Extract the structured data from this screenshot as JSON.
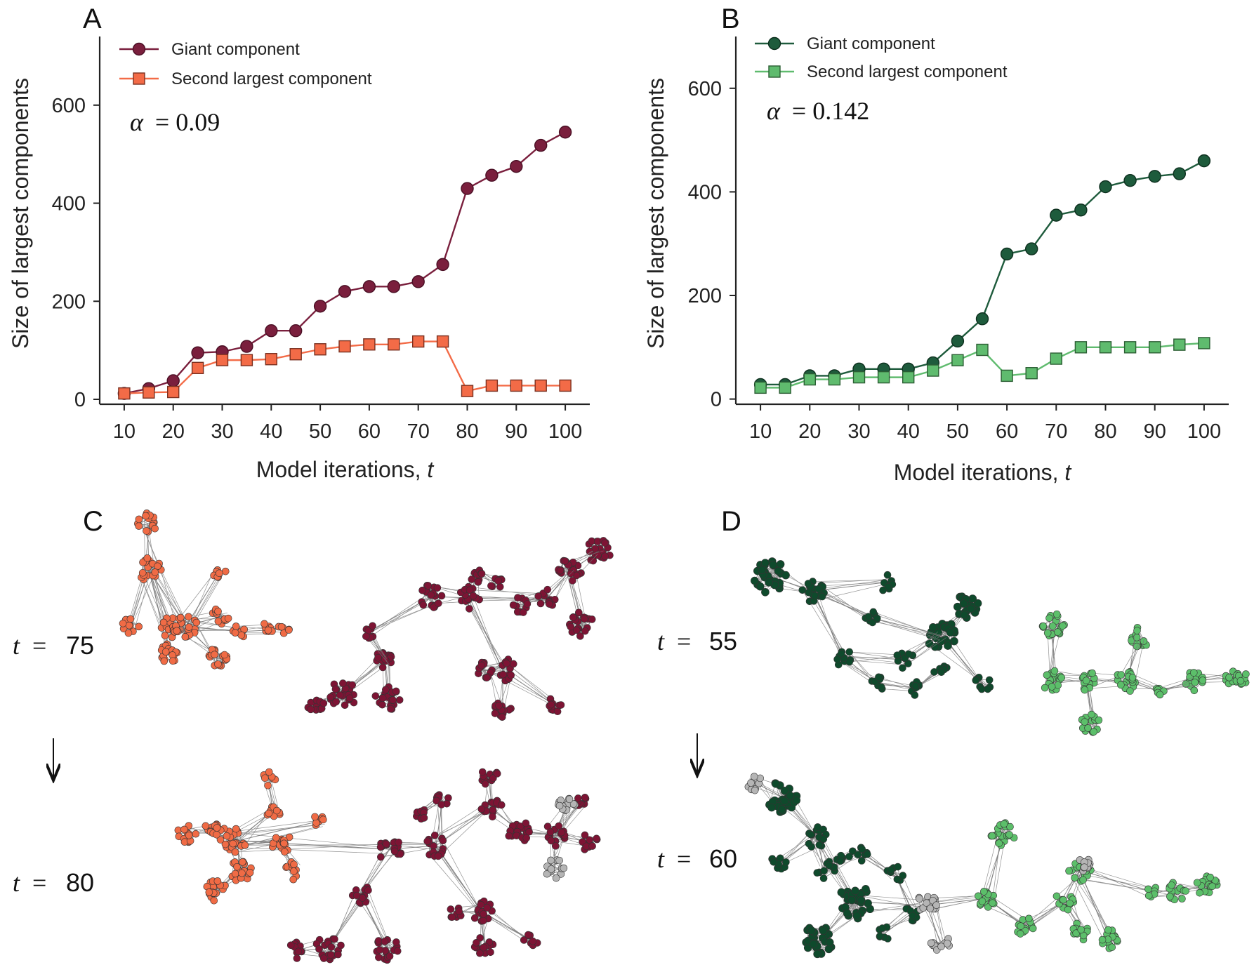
{
  "panels": {
    "A": "A",
    "B": "B",
    "C": "C",
    "D": "D"
  },
  "chart_data": [
    {
      "type": "line",
      "panel": "A",
      "xlabel_prefix": "Model iterations, ",
      "xlabel_var": "t",
      "ylabel": "Size of largest components",
      "annotation_lhs": "α",
      "annotation_rhs": "= 0.09",
      "x": [
        10,
        15,
        20,
        25,
        30,
        35,
        40,
        45,
        50,
        55,
        60,
        65,
        70,
        75,
        80,
        85,
        90,
        95,
        100
      ],
      "xticks": [
        10,
        20,
        30,
        40,
        50,
        60,
        70,
        80,
        90,
        100
      ],
      "yticks": [
        0,
        200,
        400,
        600
      ],
      "xlim": [
        5,
        105
      ],
      "ylim": [
        -10,
        740
      ],
      "legend_position": "top-left",
      "series": [
        {
          "name": "Giant component",
          "marker": "circle",
          "color": "#7a1f3d",
          "edge": "#4a0f24",
          "values": [
            12,
            22,
            38,
            95,
            97,
            108,
            140,
            140,
            190,
            220,
            230,
            230,
            240,
            275,
            430,
            457,
            475,
            518,
            545
          ]
        },
        {
          "name": "Second largest component",
          "marker": "square",
          "color": "#f36b47",
          "edge": "#7a3020",
          "values": [
            12,
            14,
            15,
            64,
            80,
            80,
            82,
            92,
            102,
            108,
            112,
            112,
            118,
            118,
            17,
            28,
            28,
            28,
            28
          ]
        }
      ]
    },
    {
      "type": "line",
      "panel": "B",
      "xlabel_prefix": "Model iterations, ",
      "xlabel_var": "t",
      "ylabel": "Size of largest components",
      "annotation_lhs": "α",
      "annotation_rhs": "= 0.142",
      "x": [
        10,
        15,
        20,
        25,
        30,
        35,
        40,
        45,
        50,
        55,
        60,
        65,
        70,
        75,
        80,
        85,
        90,
        95,
        100
      ],
      "xticks": [
        10,
        20,
        30,
        40,
        50,
        60,
        70,
        80,
        90,
        100
      ],
      "yticks": [
        0,
        200,
        400,
        600
      ],
      "xlim": [
        5,
        105
      ],
      "ylim": [
        -10,
        700
      ],
      "legend_position": "top-left",
      "series": [
        {
          "name": "Giant component",
          "marker": "circle",
          "color": "#1e5b3c",
          "edge": "#0d2f1e",
          "values": [
            28,
            28,
            45,
            45,
            58,
            58,
            58,
            70,
            112,
            155,
            280,
            290,
            355,
            365,
            410,
            422,
            430,
            435,
            460
          ]
        },
        {
          "name": "Second largest component",
          "marker": "square",
          "color": "#5fbb6e",
          "edge": "#2c5e34",
          "values": [
            22,
            22,
            38,
            38,
            42,
            42,
            42,
            55,
            75,
            95,
            45,
            50,
            78,
            100,
            100,
            100,
            100,
            105,
            108
          ]
        }
      ]
    }
  ],
  "networks": {
    "C": {
      "top_label": "75",
      "bottom_label": "80",
      "colors": {
        "second": "#f06b45",
        "giant": "#7d1434",
        "other": "#b5b5b5"
      }
    },
    "D": {
      "top_label": "55",
      "bottom_label": "60",
      "colors": {
        "giant": "#0f4a2c",
        "second": "#5cbf6a",
        "other": "#b5b5b5"
      }
    },
    "t_var": "t",
    "eq": "="
  }
}
